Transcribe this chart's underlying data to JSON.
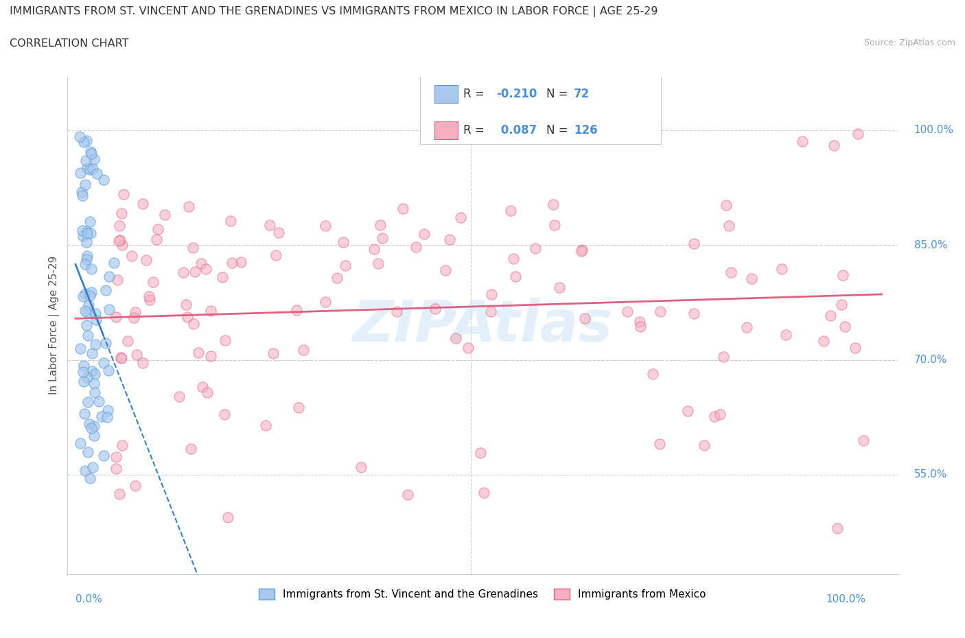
{
  "title_line1": "IMMIGRANTS FROM ST. VINCENT AND THE GRENADINES VS IMMIGRANTS FROM MEXICO IN LABOR FORCE | AGE 25-29",
  "title_line2": "CORRELATION CHART",
  "source": "Source: ZipAtlas.com",
  "ylabel": "In Labor Force | Age 25-29",
  "ytick_values": [
    0.55,
    0.7,
    0.85,
    1.0
  ],
  "ytick_labels": [
    "55.0%",
    "70.0%",
    "85.0%",
    "100.0%"
  ],
  "blue_color": "#a8c8f0",
  "pink_color": "#f5b0c0",
  "blue_edge": "#5a9fd4",
  "pink_edge": "#e06080",
  "blue_trend_color": "#3a7fc0",
  "pink_trend_color": "#e06080",
  "blue_R": -0.21,
  "blue_N": 72,
  "pink_R": 0.087,
  "pink_N": 126,
  "legend_label_blue": "Immigrants from St. Vincent and the Grenadines",
  "legend_label_pink": "Immigrants from Mexico",
  "watermark": "ZIPAtlas",
  "title_color": "#333333",
  "axis_label_color": "#555555",
  "tick_label_color": "#4a90d9",
  "hline_color": "#cccccc",
  "source_color": "#aaaaaa"
}
